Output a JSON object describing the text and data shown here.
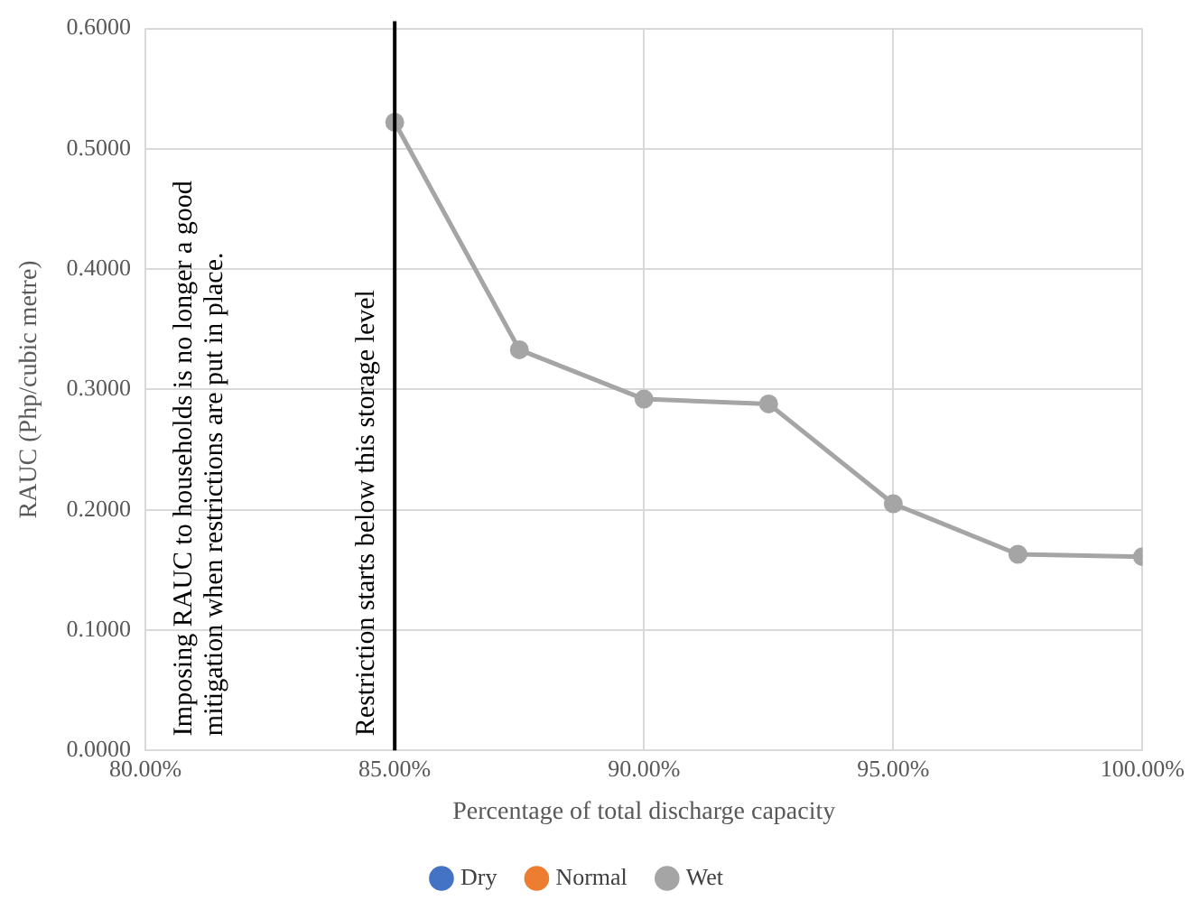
{
  "chart_data": {
    "type": "line",
    "xlabel": "Percentage of total discharge capacity",
    "ylabel": "RAUC (Php/cubic metre)",
    "x": [
      85,
      87.5,
      90,
      92.5,
      95,
      97.5,
      100
    ],
    "series": [
      {
        "name": "Dry",
        "color": "#4472c4",
        "values": [
          null,
          null,
          null,
          null,
          null,
          null,
          null
        ]
      },
      {
        "name": "Normal",
        "color": "#ed7d31",
        "values": [
          null,
          null,
          null,
          null,
          null,
          null,
          null
        ]
      },
      {
        "name": "Wet",
        "color": "#a5a5a5",
        "values": [
          0.522,
          0.333,
          0.292,
          0.288,
          0.205,
          0.163,
          0.161
        ]
      }
    ],
    "xlim": [
      80,
      100
    ],
    "xticks": [
      {
        "value": 80,
        "label": "80.00%"
      },
      {
        "value": 85,
        "label": "85.00%"
      },
      {
        "value": 90,
        "label": "90.00%"
      },
      {
        "value": 95,
        "label": "95.00%"
      },
      {
        "value": 100,
        "label": "100.00%"
      }
    ],
    "ylim": [
      0,
      0.6
    ],
    "yticks": [
      {
        "value": 0,
        "label": "0.0000"
      },
      {
        "value": 0.1,
        "label": "0.1000"
      },
      {
        "value": 0.2,
        "label": "0.2000"
      },
      {
        "value": 0.3,
        "label": "0.3000"
      },
      {
        "value": 0.4,
        "label": "0.4000"
      },
      {
        "value": 0.5,
        "label": "0.5000"
      },
      {
        "value": 0.6,
        "label": "0.6000"
      }
    ],
    "ref_lines": [
      {
        "axis": "x",
        "value": 85,
        "label": "Restriction starts below this storage level",
        "color": "#000000"
      }
    ],
    "annotations": [
      "Imposing RAUC to households is no longer a good mitigation when restrictions are put in place."
    ],
    "grid": true,
    "legend": "bottom",
    "marker": "circle",
    "line_style": "solid"
  }
}
